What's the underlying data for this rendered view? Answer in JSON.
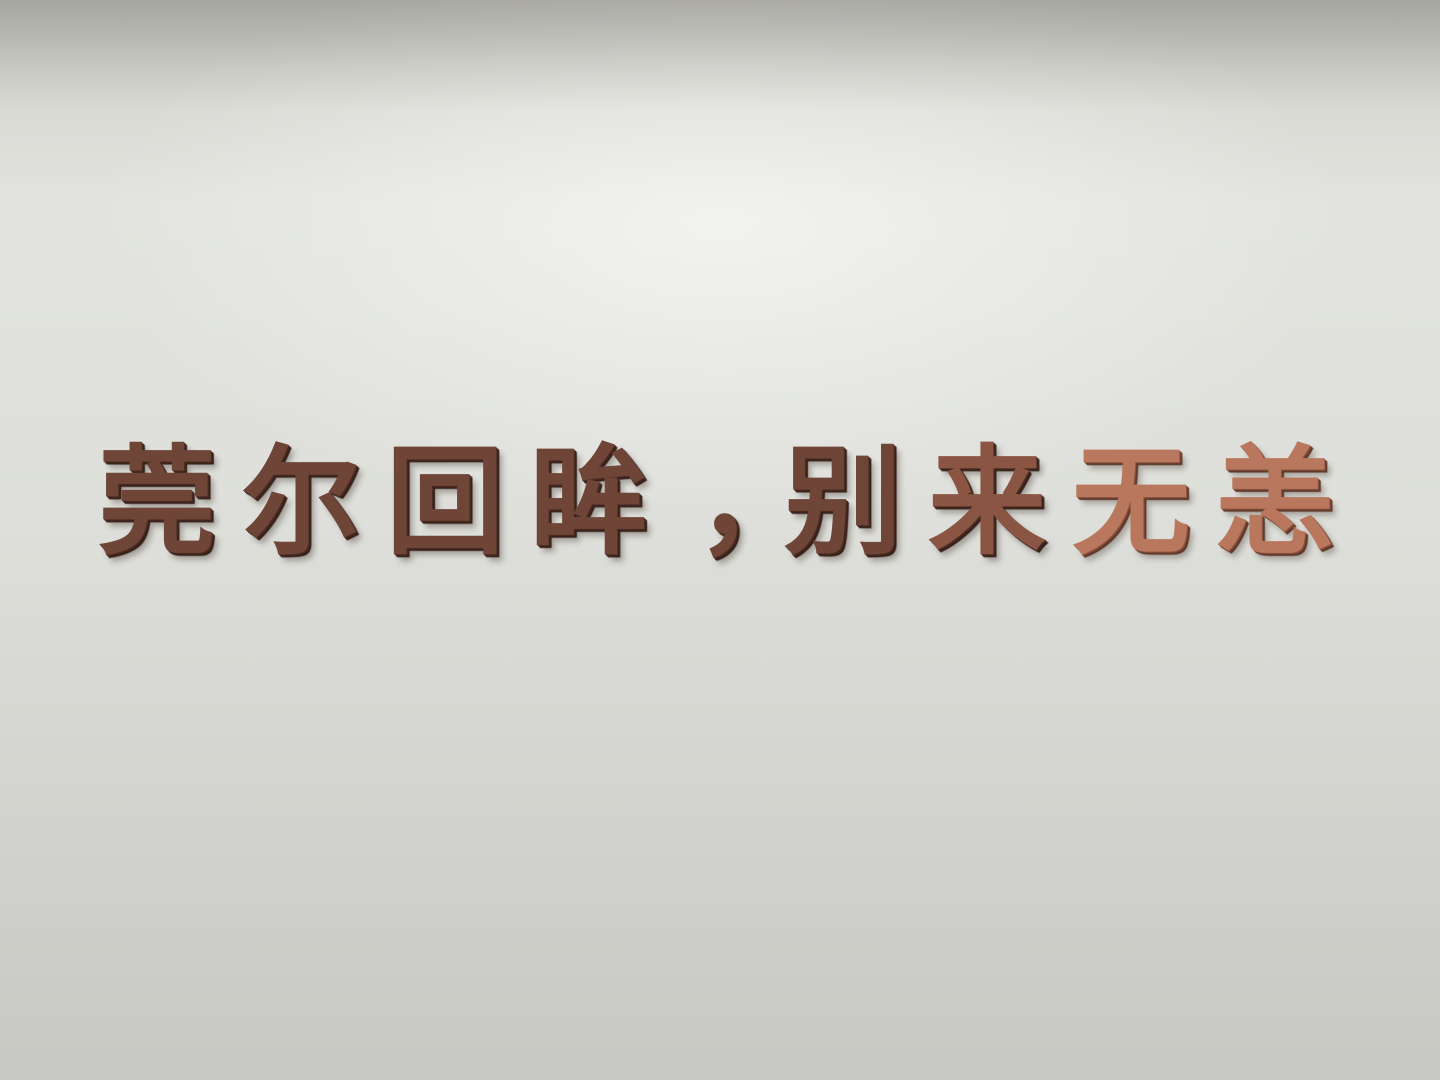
{
  "scene": {
    "wall_color": "#dedfda",
    "letter_color_dark": "#6e4536",
    "letter_color_light": "#b9785d"
  },
  "signage": {
    "characters": [
      "莞",
      "尔",
      "回",
      "眸",
      "，",
      "别",
      "来",
      "无",
      "恙"
    ]
  }
}
